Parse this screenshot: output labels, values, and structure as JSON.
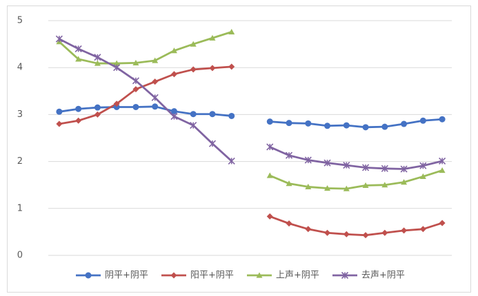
{
  "chart_data": {
    "type": "line",
    "categories": [
      null,
      null,
      null,
      null,
      null,
      null,
      null,
      null,
      null,
      null,
      null,
      null,
      null,
      null,
      null,
      null,
      null,
      null,
      null,
      null,
      null
    ],
    "series": [
      {
        "name": "阴平+阴平",
        "color": "#4472c4",
        "marker": "circle",
        "values": [
          3.06,
          3.12,
          3.15,
          3.16,
          3.16,
          3.17,
          3.07,
          3.01,
          3.01,
          2.97,
          null,
          2.85,
          2.82,
          2.81,
          2.76,
          2.77,
          2.73,
          2.74,
          2.8,
          2.87,
          2.9
        ]
      },
      {
        "name": "阳平+阴平",
        "color": "#c0504d",
        "marker": "diamond",
        "values": [
          2.8,
          2.87,
          3.0,
          3.23,
          3.54,
          3.7,
          3.86,
          3.96,
          3.99,
          4.02,
          null,
          0.83,
          0.68,
          0.56,
          0.48,
          0.45,
          0.43,
          0.48,
          0.53,
          0.56,
          0.69
        ]
      },
      {
        "name": "上声+阴平",
        "color": "#9bbb59",
        "marker": "triangle",
        "values": [
          4.55,
          4.18,
          4.09,
          4.09,
          4.1,
          4.15,
          4.36,
          4.5,
          4.63,
          4.76,
          null,
          1.7,
          1.53,
          1.46,
          1.43,
          1.42,
          1.49,
          1.5,
          1.56,
          1.68,
          1.81
        ]
      },
      {
        "name": "去声+阴平",
        "color": "#8064a2",
        "marker": "star",
        "values": [
          4.61,
          4.4,
          4.22,
          4.0,
          3.72,
          3.36,
          2.96,
          2.77,
          2.38,
          2.01,
          null,
          2.31,
          2.13,
          2.03,
          1.97,
          1.92,
          1.87,
          1.85,
          1.84,
          1.91,
          2.01
        ]
      }
    ],
    "ylim": [
      0,
      5
    ],
    "yticks": [
      0,
      1,
      2,
      3,
      4,
      5
    ],
    "grid": true,
    "legend": "bottom"
  }
}
